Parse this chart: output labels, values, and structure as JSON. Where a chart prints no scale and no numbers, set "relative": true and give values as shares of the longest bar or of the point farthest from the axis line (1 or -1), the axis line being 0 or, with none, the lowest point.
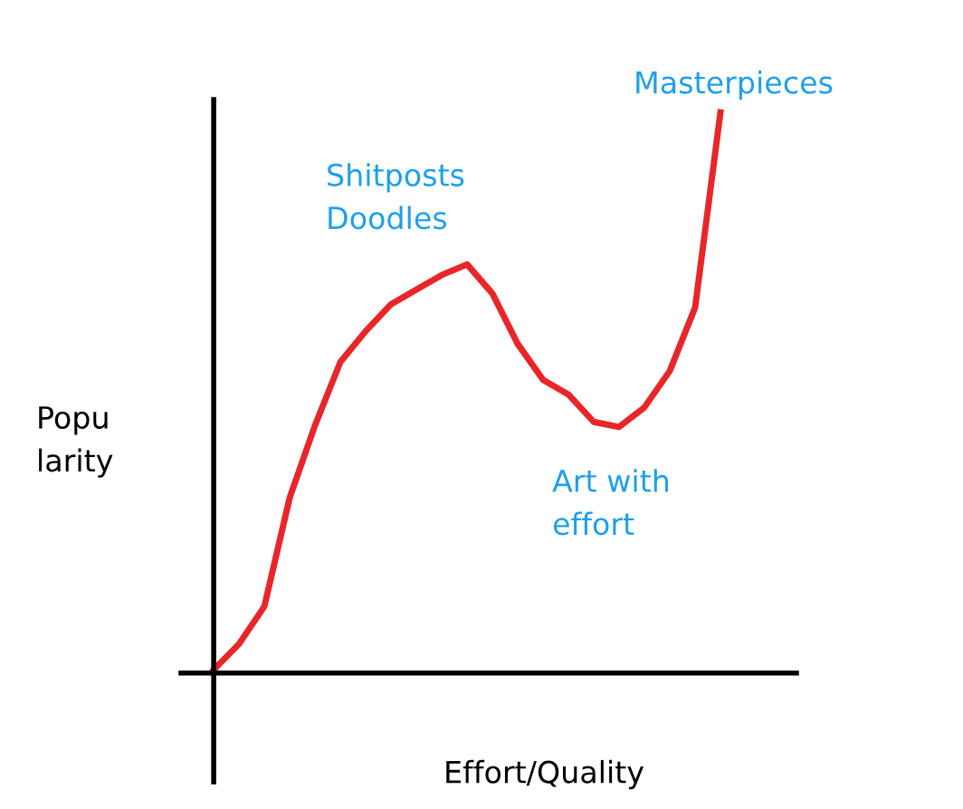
{
  "chart_data": {
    "type": "line",
    "relative": true,
    "xlabel": "Effort/Quality",
    "ylabel": "Popu\nlarity",
    "categories": [
      null,
      null,
      null,
      null,
      null,
      null,
      null,
      null,
      null,
      null,
      null,
      null,
      null,
      null,
      null,
      null,
      null,
      null,
      null,
      null,
      null
    ],
    "series": [
      {
        "color": "#e8262a",
        "values": [
          0.006,
          0.052,
          0.119,
          0.313,
          0.442,
          0.555,
          0.61,
          0.658,
          0.684,
          0.71,
          0.729,
          0.677,
          0.587,
          0.523,
          0.497,
          0.448,
          0.439,
          0.474,
          0.539,
          0.652,
          1.0
        ]
      }
    ],
    "annotations": [
      "Masterpieces",
      "Shitposts\nDoodles",
      "Art with\neffort"
    ]
  }
}
